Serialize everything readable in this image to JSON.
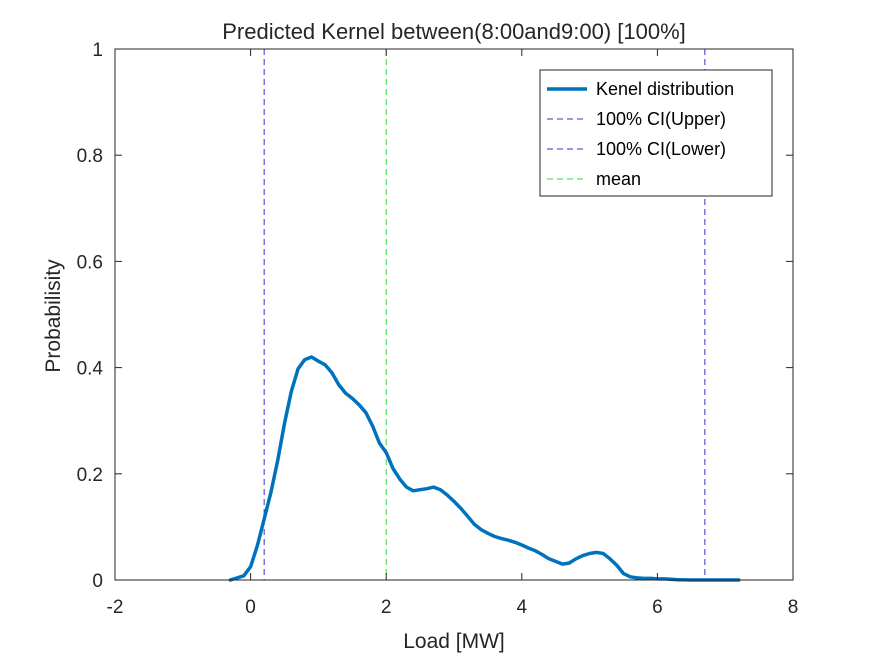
{
  "chart_data": {
    "type": "line",
    "title": "Predicted Kernel between(8:00and9:00) [100%]",
    "xlabel": "Load [MW]",
    "ylabel": "Probabilisity",
    "xlim": [
      -2,
      8
    ],
    "ylim": [
      0,
      1
    ],
    "xticks": [
      -2,
      0,
      2,
      4,
      6,
      8
    ],
    "yticks": [
      0,
      0.2,
      0.4,
      0.6,
      0.8,
      1
    ],
    "xtick_labels": [
      "-2",
      "0",
      "2",
      "4",
      "6",
      "8"
    ],
    "ytick_labels": [
      "0",
      "0.2",
      "0.4",
      "0.6",
      "0.8",
      "1"
    ],
    "grid": false,
    "legend_position": "top-right",
    "series": [
      {
        "name": "Kenel distribution",
        "style": "solid",
        "color": "#0072BD",
        "x": [
          -0.3,
          -0.1,
          0.0,
          0.1,
          0.2,
          0.3,
          0.4,
          0.5,
          0.6,
          0.7,
          0.8,
          0.9,
          1.0,
          1.1,
          1.2,
          1.3,
          1.4,
          1.5,
          1.6,
          1.7,
          1.8,
          1.9,
          2.0,
          2.1,
          2.2,
          2.3,
          2.4,
          2.5,
          2.6,
          2.7,
          2.8,
          2.9,
          3.0,
          3.1,
          3.2,
          3.3,
          3.4,
          3.5,
          3.6,
          3.7,
          3.8,
          3.9,
          4.0,
          4.1,
          4.2,
          4.3,
          4.4,
          4.5,
          4.6,
          4.7,
          4.8,
          4.9,
          5.0,
          5.1,
          5.2,
          5.3,
          5.4,
          5.5,
          5.6,
          5.7,
          5.8,
          5.9,
          6.0,
          6.1,
          6.2,
          6.3,
          6.5,
          7.2
        ],
        "y": [
          0.0,
          0.008,
          0.025,
          0.065,
          0.115,
          0.165,
          0.225,
          0.295,
          0.355,
          0.398,
          0.415,
          0.42,
          0.412,
          0.405,
          0.39,
          0.368,
          0.352,
          0.342,
          0.33,
          0.315,
          0.29,
          0.258,
          0.24,
          0.21,
          0.19,
          0.175,
          0.168,
          0.17,
          0.172,
          0.175,
          0.17,
          0.16,
          0.148,
          0.135,
          0.12,
          0.105,
          0.095,
          0.088,
          0.082,
          0.078,
          0.075,
          0.071,
          0.066,
          0.06,
          0.055,
          0.048,
          0.04,
          0.035,
          0.03,
          0.032,
          0.04,
          0.046,
          0.05,
          0.052,
          0.05,
          0.04,
          0.028,
          0.012,
          0.006,
          0.004,
          0.003,
          0.003,
          0.002,
          0.002,
          0.0015,
          0.0005,
          0.0,
          0.0
        ]
      },
      {
        "name": "100% CI(Upper)",
        "style": "dashed",
        "color": "#3333CC",
        "vline_x": 6.7
      },
      {
        "name": "100% CI(Lower)",
        "style": "dashed",
        "color": "#3333CC",
        "vline_x": 0.2
      },
      {
        "name": "mean",
        "style": "dashed",
        "color": "#33DD33",
        "vline_x": 2.0
      }
    ]
  }
}
